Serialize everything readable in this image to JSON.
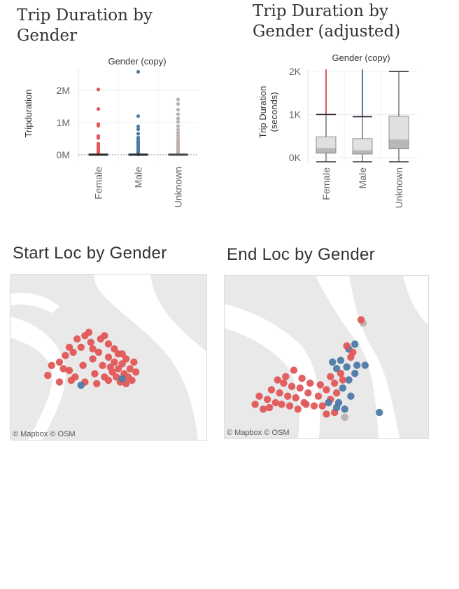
{
  "colors": {
    "female": "#e15759",
    "male": "#4e79a7",
    "unknown": "#bab0ac"
  },
  "chart_data": [
    {
      "type": "scatter",
      "title": "Trip Duration by Gender",
      "header": "Gender (copy)",
      "ylabel": "Tripduration",
      "categories": [
        "Female",
        "Male",
        "Unknown"
      ],
      "yticks": [
        {
          "value": 0,
          "label": "0M"
        },
        {
          "value": 1000000,
          "label": "1M"
        },
        {
          "value": 2000000,
          "label": "2M"
        }
      ],
      "ylim": [
        -200000,
        2700000
      ],
      "grid": true,
      "series": [
        {
          "category": "Female",
          "values": [
            2030000,
            1420000,
            950000,
            900000,
            580000,
            520000,
            340000,
            280000,
            220000,
            160000,
            110000,
            70000,
            40000,
            15000
          ]
        },
        {
          "category": "Male",
          "values": [
            2580000,
            1200000,
            880000,
            790000,
            650000,
            530000,
            470000,
            420000,
            380000,
            330000,
            270000,
            220000,
            170000,
            120000,
            80000,
            40000,
            10000
          ]
        },
        {
          "category": "Unknown",
          "values": [
            1720000,
            1580000,
            1400000,
            1260000,
            1130000,
            1020000,
            890000,
            780000,
            680000,
            590000,
            500000,
            430000,
            370000,
            300000,
            250000,
            200000,
            150000,
            100000,
            60000,
            25000
          ]
        }
      ]
    },
    {
      "type": "boxplot",
      "title": "Trip Duration by Gender (adjusted)",
      "header": "Gender (copy)",
      "ylabel_lines": [
        "Trip Duration",
        "(seconds)"
      ],
      "categories": [
        "Female",
        "Male",
        "Unknown"
      ],
      "yticks": [
        {
          "value": 0,
          "label": "0K"
        },
        {
          "value": 1000,
          "label": "1K"
        },
        {
          "value": 2000,
          "label": "2K"
        }
      ],
      "ylim": [
        -100,
        2050
      ],
      "grid": true,
      "boxes": [
        {
          "category": "Female",
          "min": -100,
          "q1": 100,
          "median": 220,
          "q3": 480,
          "max": 1000,
          "upper_line": 2050
        },
        {
          "category": "Male",
          "min": -100,
          "q1": 80,
          "median": 170,
          "q3": 440,
          "max": 950,
          "upper_line": 2050
        },
        {
          "category": "Unknown",
          "min": -100,
          "q1": 200,
          "median": 420,
          "q3": 960,
          "max": 2000
        }
      ]
    }
  ],
  "maps": [
    {
      "title": "Start Loc by Gender",
      "attribution": "© Mapbox © OSM",
      "points": [
        {
          "g": "female",
          "x": 0.21,
          "y": 0.55
        },
        {
          "g": "female",
          "x": 0.25,
          "y": 0.53
        },
        {
          "g": "female",
          "x": 0.28,
          "y": 0.49
        },
        {
          "g": "female",
          "x": 0.3,
          "y": 0.58
        },
        {
          "g": "female",
          "x": 0.33,
          "y": 0.62
        },
        {
          "g": "female",
          "x": 0.32,
          "y": 0.47
        },
        {
          "g": "female",
          "x": 0.36,
          "y": 0.44
        },
        {
          "g": "female",
          "x": 0.37,
          "y": 0.55
        },
        {
          "g": "female",
          "x": 0.38,
          "y": 0.37
        },
        {
          "g": "female",
          "x": 0.41,
          "y": 0.41
        },
        {
          "g": "female",
          "x": 0.42,
          "y": 0.51
        },
        {
          "g": "female",
          "x": 0.43,
          "y": 0.6
        },
        {
          "g": "female",
          "x": 0.45,
          "y": 0.47
        },
        {
          "g": "female",
          "x": 0.47,
          "y": 0.55
        },
        {
          "g": "female",
          "x": 0.48,
          "y": 0.62
        },
        {
          "g": "female",
          "x": 0.5,
          "y": 0.5
        },
        {
          "g": "female",
          "x": 0.51,
          "y": 0.56
        },
        {
          "g": "female",
          "x": 0.52,
          "y": 0.59
        },
        {
          "g": "female",
          "x": 0.53,
          "y": 0.53
        },
        {
          "g": "female",
          "x": 0.54,
          "y": 0.62
        },
        {
          "g": "female",
          "x": 0.55,
          "y": 0.57
        },
        {
          "g": "female",
          "x": 0.56,
          "y": 0.65
        },
        {
          "g": "female",
          "x": 0.57,
          "y": 0.54
        },
        {
          "g": "female",
          "x": 0.58,
          "y": 0.6
        },
        {
          "g": "female",
          "x": 0.59,
          "y": 0.66
        },
        {
          "g": "female",
          "x": 0.6,
          "y": 0.62
        },
        {
          "g": "female",
          "x": 0.61,
          "y": 0.57
        },
        {
          "g": "female",
          "x": 0.62,
          "y": 0.64
        },
        {
          "g": "female",
          "x": 0.59,
          "y": 0.51
        },
        {
          "g": "female",
          "x": 0.55,
          "y": 0.48
        },
        {
          "g": "female",
          "x": 0.5,
          "y": 0.42
        },
        {
          "g": "female",
          "x": 0.46,
          "y": 0.39
        },
        {
          "g": "female",
          "x": 0.4,
          "y": 0.35
        },
        {
          "g": "female",
          "x": 0.34,
          "y": 0.39
        },
        {
          "g": "female",
          "x": 0.3,
          "y": 0.44
        },
        {
          "g": "female",
          "x": 0.27,
          "y": 0.57
        },
        {
          "g": "female",
          "x": 0.31,
          "y": 0.64
        },
        {
          "g": "female",
          "x": 0.38,
          "y": 0.65
        },
        {
          "g": "female",
          "x": 0.44,
          "y": 0.66
        },
        {
          "g": "female",
          "x": 0.5,
          "y": 0.64
        },
        {
          "g": "female",
          "x": 0.57,
          "y": 0.48
        },
        {
          "g": "female",
          "x": 0.63,
          "y": 0.53
        },
        {
          "g": "female",
          "x": 0.64,
          "y": 0.59
        },
        {
          "g": "female",
          "x": 0.53,
          "y": 0.45
        },
        {
          "g": "female",
          "x": 0.19,
          "y": 0.61
        },
        {
          "g": "female",
          "x": 0.48,
          "y": 0.37
        },
        {
          "g": "female",
          "x": 0.25,
          "y": 0.65
        },
        {
          "g": "female",
          "x": 0.42,
          "y": 0.45
        },
        {
          "g": "male",
          "x": 0.36,
          "y": 0.67
        },
        {
          "g": "male",
          "x": 0.57,
          "y": 0.63
        }
      ]
    },
    {
      "title": "End Loc by Gender",
      "attribution": "© Mapbox © OSM",
      "points": [
        {
          "g": "unknown",
          "x": 0.68,
          "y": 0.29
        },
        {
          "g": "unknown",
          "x": 0.59,
          "y": 0.87
        },
        {
          "g": "female",
          "x": 0.67,
          "y": 0.27
        },
        {
          "g": "male",
          "x": 0.64,
          "y": 0.42
        },
        {
          "g": "male",
          "x": 0.61,
          "y": 0.45
        },
        {
          "g": "female",
          "x": 0.6,
          "y": 0.43
        },
        {
          "g": "female",
          "x": 0.62,
          "y": 0.5
        },
        {
          "g": "male",
          "x": 0.65,
          "y": 0.55
        },
        {
          "g": "male",
          "x": 0.6,
          "y": 0.56
        },
        {
          "g": "male",
          "x": 0.55,
          "y": 0.57
        },
        {
          "g": "female",
          "x": 0.52,
          "y": 0.62
        },
        {
          "g": "female",
          "x": 0.57,
          "y": 0.6
        },
        {
          "g": "female",
          "x": 0.54,
          "y": 0.66
        },
        {
          "g": "male",
          "x": 0.61,
          "y": 0.64
        },
        {
          "g": "male",
          "x": 0.58,
          "y": 0.69
        },
        {
          "g": "female",
          "x": 0.55,
          "y": 0.72
        },
        {
          "g": "female",
          "x": 0.5,
          "y": 0.7
        },
        {
          "g": "male",
          "x": 0.62,
          "y": 0.74
        },
        {
          "g": "male",
          "x": 0.56,
          "y": 0.78
        },
        {
          "g": "female",
          "x": 0.52,
          "y": 0.76
        },
        {
          "g": "female",
          "x": 0.48,
          "y": 0.8
        },
        {
          "g": "male",
          "x": 0.59,
          "y": 0.82
        },
        {
          "g": "female",
          "x": 0.54,
          "y": 0.84
        },
        {
          "g": "female",
          "x": 0.5,
          "y": 0.85
        },
        {
          "g": "male",
          "x": 0.76,
          "y": 0.84
        },
        {
          "g": "female",
          "x": 0.46,
          "y": 0.74
        },
        {
          "g": "female",
          "x": 0.44,
          "y": 0.8
        },
        {
          "g": "female",
          "x": 0.41,
          "y": 0.72
        },
        {
          "g": "female",
          "x": 0.39,
          "y": 0.78
        },
        {
          "g": "female",
          "x": 0.37,
          "y": 0.69
        },
        {
          "g": "female",
          "x": 0.35,
          "y": 0.75
        },
        {
          "g": "female",
          "x": 0.33,
          "y": 0.68
        },
        {
          "g": "female",
          "x": 0.31,
          "y": 0.74
        },
        {
          "g": "female",
          "x": 0.29,
          "y": 0.66
        },
        {
          "g": "female",
          "x": 0.27,
          "y": 0.72
        },
        {
          "g": "female",
          "x": 0.25,
          "y": 0.78
        },
        {
          "g": "female",
          "x": 0.23,
          "y": 0.7
        },
        {
          "g": "female",
          "x": 0.21,
          "y": 0.76
        },
        {
          "g": "female",
          "x": 0.19,
          "y": 0.82
        },
        {
          "g": "female",
          "x": 0.17,
          "y": 0.74
        },
        {
          "g": "female",
          "x": 0.15,
          "y": 0.79
        },
        {
          "g": "female",
          "x": 0.3,
          "y": 0.62
        },
        {
          "g": "female",
          "x": 0.34,
          "y": 0.58
        },
        {
          "g": "female",
          "x": 0.38,
          "y": 0.63
        },
        {
          "g": "female",
          "x": 0.42,
          "y": 0.66
        },
        {
          "g": "female",
          "x": 0.26,
          "y": 0.64
        },
        {
          "g": "female",
          "x": 0.22,
          "y": 0.81
        },
        {
          "g": "female",
          "x": 0.28,
          "y": 0.79
        },
        {
          "g": "female",
          "x": 0.32,
          "y": 0.8
        },
        {
          "g": "female",
          "x": 0.36,
          "y": 0.82
        },
        {
          "g": "female",
          "x": 0.4,
          "y": 0.79
        },
        {
          "g": "female",
          "x": 0.47,
          "y": 0.67
        },
        {
          "g": "male",
          "x": 0.53,
          "y": 0.53
        },
        {
          "g": "male",
          "x": 0.57,
          "y": 0.52
        },
        {
          "g": "male",
          "x": 0.64,
          "y": 0.6
        },
        {
          "g": "male",
          "x": 0.55,
          "y": 0.81
        },
        {
          "g": "male",
          "x": 0.51,
          "y": 0.78
        },
        {
          "g": "female",
          "x": 0.63,
          "y": 0.47
        },
        {
          "g": "female",
          "x": 0.58,
          "y": 0.64
        },
        {
          "g": "male",
          "x": 0.69,
          "y": 0.55
        }
      ]
    }
  ]
}
